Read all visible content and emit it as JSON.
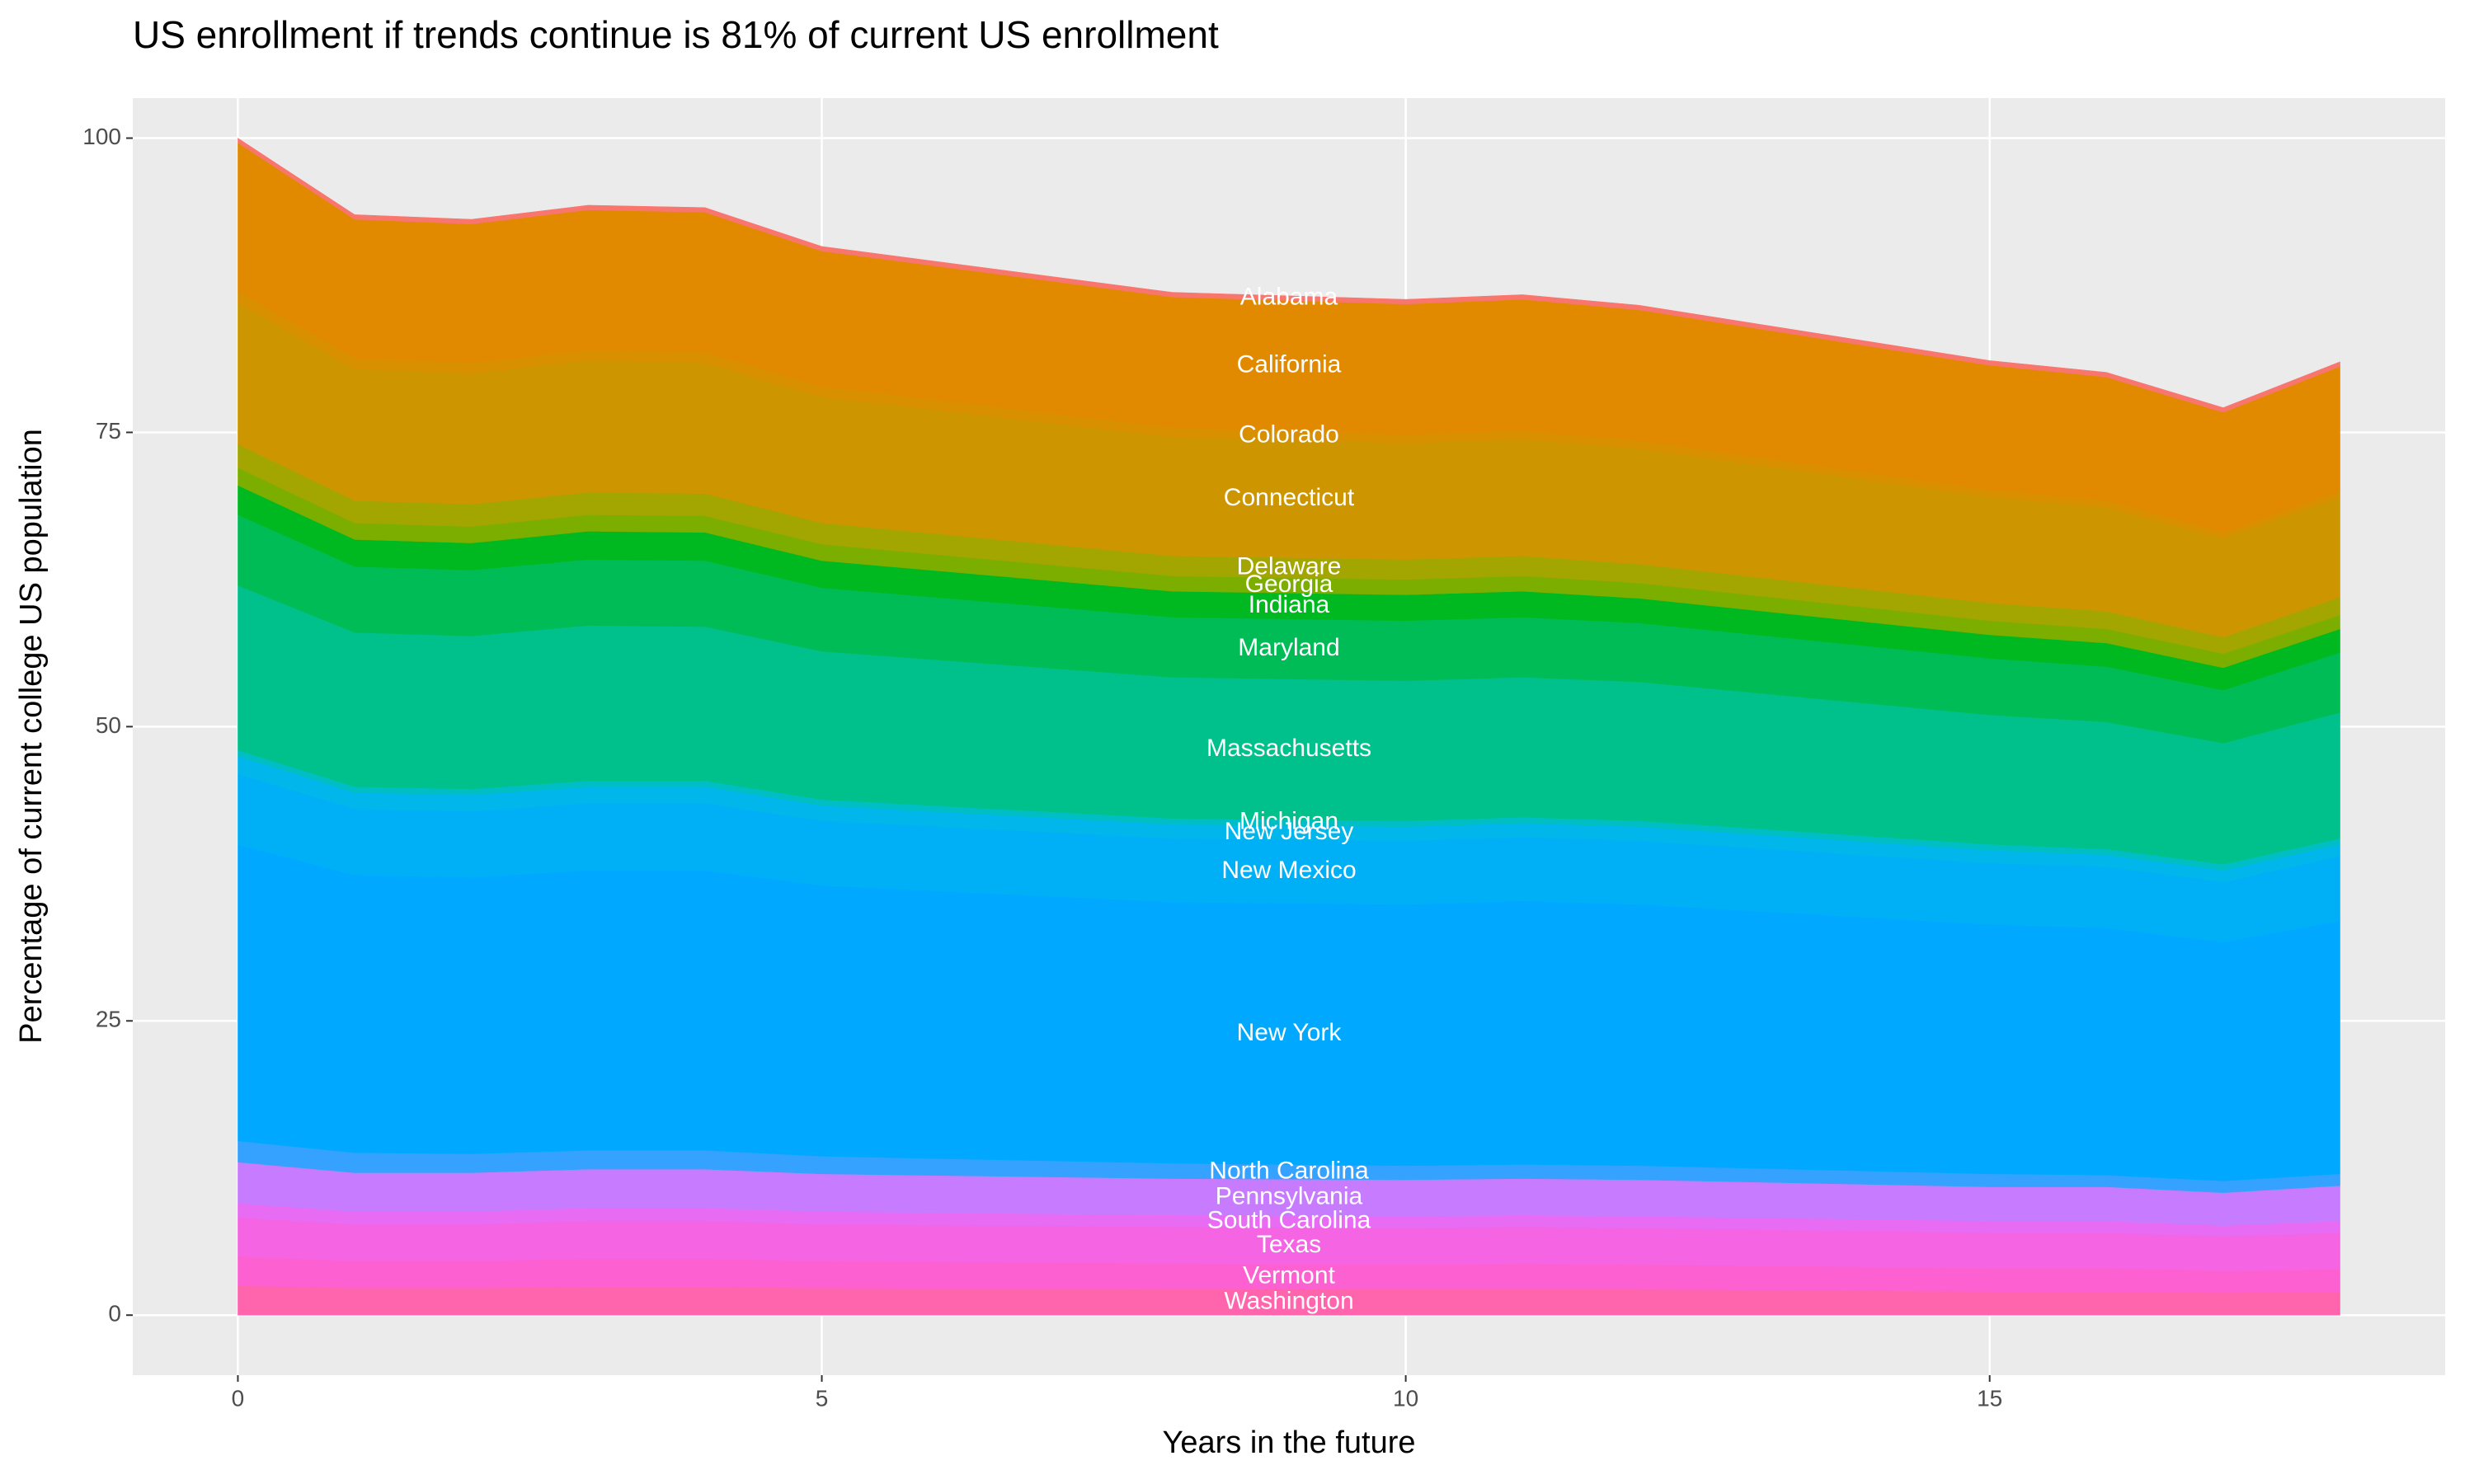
{
  "chart_data": {
    "type": "area",
    "stacked": true,
    "title": "US enrollment if trends continue is 81% of current US enrollment",
    "x_label": "Years in the future",
    "y_label": "Percentage of current college US population",
    "x": [
      0,
      1,
      2,
      3,
      4,
      5,
      8,
      10,
      11,
      12,
      15,
      16,
      17,
      18
    ],
    "xlim": [
      -0.9,
      18.9
    ],
    "xticks": [
      0,
      5,
      10,
      15
    ],
    "ylim": [
      -5.1,
      103.4
    ],
    "yticks": [
      0,
      25,
      50,
      75,
      100
    ],
    "grid": true,
    "series": [
      {
        "name": "Washington",
        "color": "#FF65AC",
        "values": [
          2.5,
          2.3,
          2.3,
          2.4,
          2.4,
          2.3,
          2.2,
          2.2,
          2.2,
          2.2,
          2.0,
          2.0,
          1.9,
          2.0
        ]
      },
      {
        "name": "Vermont",
        "color": "#FD61D1",
        "values": [
          2.5,
          2.3,
          2.3,
          2.4,
          2.4,
          2.3,
          2.2,
          2.1,
          2.2,
          2.1,
          2.0,
          2.0,
          1.9,
          1.9
        ]
      },
      {
        "name": "Texas",
        "color": "#F564E3",
        "values": [
          3.3,
          3.1,
          3.1,
          3.2,
          3.2,
          3.1,
          3.1,
          3.1,
          3.1,
          3.1,
          3.0,
          3.0,
          2.9,
          3.1
        ]
      },
      {
        "name": "South Carolina",
        "color": "#E76BF3",
        "values": [
          1.2,
          1.1,
          1.1,
          1.1,
          1.1,
          1.1,
          1.0,
          1.0,
          1.0,
          1.0,
          1.0,
          1.0,
          0.9,
          1.0
        ]
      },
      {
        "name": "Pennsylvania",
        "color": "#C77CFF",
        "values": [
          3.5,
          3.3,
          3.3,
          3.3,
          3.3,
          3.2,
          3.1,
          3.1,
          3.1,
          3.1,
          2.9,
          2.9,
          2.8,
          3.0
        ]
      },
      {
        "name": "North Carolina",
        "color": "#35A2FF",
        "values": [
          1.8,
          1.7,
          1.6,
          1.6,
          1.6,
          1.5,
          1.3,
          1.2,
          1.2,
          1.2,
          1.1,
          1.0,
          1.0,
          1.0
        ]
      },
      {
        "name": "New York",
        "color": "#00A9FF",
        "values": [
          25.2,
          23.6,
          23.5,
          23.8,
          23.8,
          23.0,
          22.2,
          22.2,
          22.4,
          22.2,
          21.2,
          21.0,
          20.3,
          21.5
        ]
      },
      {
        "name": "New Mexico",
        "color": "#00B0F6",
        "values": [
          6.0,
          5.6,
          5.6,
          5.7,
          5.7,
          5.5,
          5.4,
          5.4,
          5.4,
          5.4,
          5.2,
          5.2,
          5.1,
          5.5
        ]
      },
      {
        "name": "New Jersey",
        "color": "#00B6EB",
        "values": [
          1.5,
          1.4,
          1.4,
          1.4,
          1.4,
          1.3,
          1.2,
          1.2,
          1.2,
          1.2,
          1.1,
          1.0,
          1.0,
          1.0
        ]
      },
      {
        "name": "Michigan",
        "color": "#00BFC4",
        "values": [
          0.5,
          0.5,
          0.5,
          0.5,
          0.5,
          0.5,
          0.5,
          0.5,
          0.5,
          0.5,
          0.5,
          0.5,
          0.5,
          0.5
        ]
      },
      {
        "name": "Massachusetts",
        "color": "#00C08B",
        "values": [
          14.0,
          13.1,
          13.0,
          13.2,
          13.1,
          12.6,
          12.0,
          11.9,
          11.9,
          11.8,
          11.0,
          10.8,
          10.3,
          10.7
        ]
      },
      {
        "name": "Maryland",
        "color": "#00BC56",
        "values": [
          6.0,
          5.6,
          5.6,
          5.6,
          5.6,
          5.4,
          5.1,
          5.1,
          5.1,
          5.0,
          4.8,
          4.7,
          4.5,
          5.1
        ]
      },
      {
        "name": "Indiana",
        "color": "#00B81F",
        "values": [
          2.5,
          2.3,
          2.3,
          2.4,
          2.4,
          2.3,
          2.2,
          2.2,
          2.2,
          2.1,
          2.0,
          2.0,
          1.9,
          2.0
        ]
      },
      {
        "name": "Georgia",
        "color": "#7CAE00",
        "values": [
          1.5,
          1.4,
          1.4,
          1.4,
          1.4,
          1.4,
          1.3,
          1.3,
          1.3,
          1.3,
          1.2,
          1.2,
          1.2,
          1.2
        ]
      },
      {
        "name": "Delaware",
        "color": "#A3A500",
        "values": [
          2.0,
          1.9,
          1.9,
          1.9,
          1.9,
          1.8,
          1.7,
          1.7,
          1.7,
          1.6,
          1.5,
          1.5,
          1.4,
          1.5
        ]
      },
      {
        "name": "Connecticut",
        "color": "#CD9600",
        "values": [
          12.0,
          11.2,
          11.1,
          11.2,
          11.1,
          10.7,
          10.1,
          9.9,
          9.9,
          9.8,
          9.0,
          8.8,
          8.4,
          8.5
        ]
      },
      {
        "name": "Colorado",
        "color": "#D89000",
        "values": [
          1.0,
          0.9,
          0.9,
          0.9,
          0.9,
          0.9,
          0.8,
          0.7,
          0.7,
          0.7,
          0.6,
          0.6,
          0.5,
          0.5
        ]
      },
      {
        "name": "California",
        "color": "#E18A00",
        "values": [
          12.6,
          11.8,
          11.8,
          11.9,
          11.9,
          11.5,
          11.1,
          11.1,
          11.2,
          11.1,
          10.6,
          10.5,
          10.2,
          10.6
        ]
      },
      {
        "name": "Alabama",
        "color": "#F8766D",
        "values": [
          0.4,
          0.4,
          0.4,
          0.4,
          0.4,
          0.4,
          0.4,
          0.4,
          0.4,
          0.4,
          0.4,
          0.4,
          0.4,
          0.4
        ]
      }
    ]
  }
}
